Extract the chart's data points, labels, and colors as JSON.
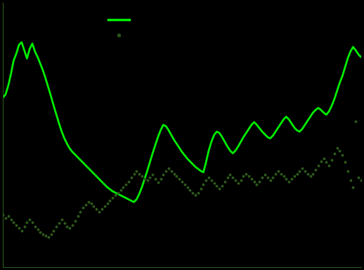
{
  "background_color": "#000000",
  "line1_color": "#00ee00",
  "line2_color": "#2d5a1b",
  "spine_color": "#2d5a1b",
  "figsize": [
    5.18,
    3.85
  ],
  "dpi": 100,
  "mortgage_series": [
    0.39,
    0.395,
    0.408,
    0.425,
    0.445,
    0.455,
    0.468,
    0.472,
    0.46,
    0.448,
    0.462,
    0.47,
    0.458,
    0.45,
    0.44,
    0.43,
    0.418,
    0.405,
    0.392,
    0.378,
    0.365,
    0.352,
    0.34,
    0.33,
    0.322,
    0.315,
    0.31,
    0.306,
    0.302,
    0.298,
    0.294,
    0.29,
    0.286,
    0.282,
    0.278,
    0.274,
    0.27,
    0.266,
    0.262,
    0.258,
    0.255,
    0.252,
    0.25,
    0.248,
    0.246,
    0.244,
    0.242,
    0.24,
    0.238,
    0.236,
    0.24,
    0.248,
    0.258,
    0.27,
    0.282,
    0.295,
    0.308,
    0.32,
    0.332,
    0.342,
    0.35,
    0.348,
    0.342,
    0.335,
    0.328,
    0.322,
    0.316,
    0.31,
    0.305,
    0.3,
    0.296,
    0.292,
    0.288,
    0.285,
    0.282,
    0.28,
    0.295,
    0.312,
    0.325,
    0.335,
    0.34,
    0.338,
    0.332,
    0.325,
    0.318,
    0.312,
    0.308,
    0.312,
    0.318,
    0.325,
    0.332,
    0.338,
    0.344,
    0.35,
    0.354,
    0.35,
    0.345,
    0.34,
    0.336,
    0.332,
    0.33,
    0.334,
    0.34,
    0.346,
    0.352,
    0.358,
    0.362,
    0.358,
    0.352,
    0.346,
    0.342,
    0.34,
    0.344,
    0.35,
    0.356,
    0.362,
    0.368,
    0.372,
    0.375,
    0.372,
    0.368,
    0.365,
    0.37,
    0.378,
    0.388,
    0.4,
    0.412,
    0.422,
    0.435,
    0.448,
    0.458,
    0.465,
    0.46,
    0.454,
    0.45
  ],
  "sales_series": [
    0.218,
    0.212,
    0.215,
    0.21,
    0.206,
    0.202,
    0.198,
    0.194,
    0.2,
    0.206,
    0.21,
    0.206,
    0.2,
    0.196,
    0.192,
    0.188,
    0.186,
    0.184,
    0.188,
    0.194,
    0.2,
    0.205,
    0.21,
    0.205,
    0.2,
    0.198,
    0.202,
    0.208,
    0.215,
    0.222,
    0.228,
    0.232,
    0.236,
    0.234,
    0.23,
    0.226,
    0.222,
    0.226,
    0.23,
    0.234,
    0.238,
    0.242,
    0.246,
    0.25,
    0.254,
    0.258,
    0.262,
    0.266,
    0.272,
    0.278,
    0.282,
    0.278,
    0.274,
    0.27,
    0.268,
    0.272,
    0.276,
    0.27,
    0.265,
    0.27,
    0.276,
    0.282,
    0.286,
    0.282,
    0.278,
    0.274,
    0.27,
    0.266,
    0.262,
    0.258,
    0.254,
    0.25,
    0.246,
    0.25,
    0.256,
    0.262,
    0.268,
    0.272,
    0.268,
    0.264,
    0.26,
    0.256,
    0.26,
    0.266,
    0.272,
    0.276,
    0.272,
    0.268,
    0.264,
    0.268,
    0.274,
    0.278,
    0.274,
    0.27,
    0.266,
    0.262,
    0.266,
    0.272,
    0.276,
    0.272,
    0.268,
    0.272,
    0.278,
    0.282,
    0.278,
    0.274,
    0.27,
    0.266,
    0.27,
    0.274,
    0.278,
    0.282,
    0.286,
    0.282,
    0.278,
    0.274,
    0.278,
    0.284,
    0.29,
    0.296,
    0.3,
    0.295,
    0.29,
    0.298,
    0.308,
    0.316,
    0.312,
    0.305,
    0.295,
    0.282,
    0.268,
    0.258,
    0.355,
    0.272,
    0.268
  ],
  "xmin": 0,
  "xmax": 134,
  "ylim": [
    0.14,
    0.53
  ]
}
